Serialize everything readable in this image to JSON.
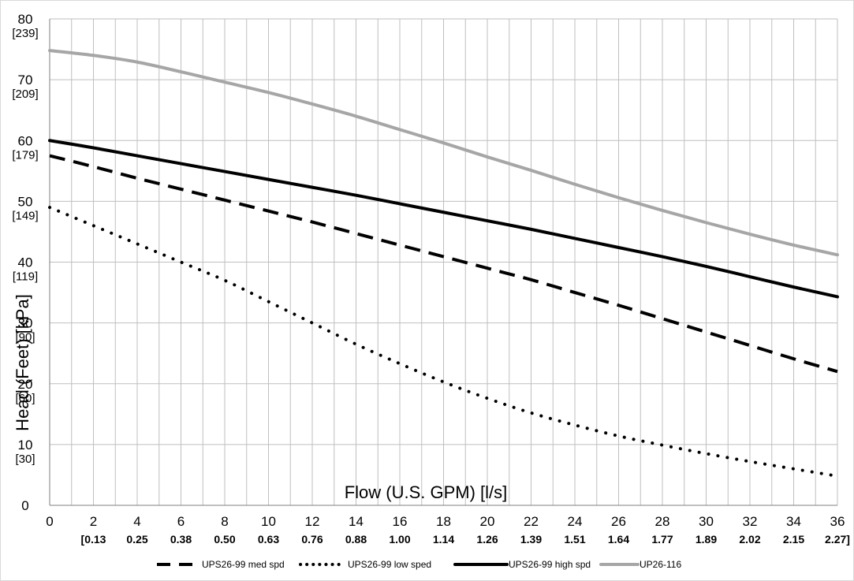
{
  "chart_data": {
    "type": "line",
    "title": "",
    "xlabel": "Flow (U.S. GPM) [l/s]",
    "ylabel": "Head (Feet) [kPa]",
    "xlim": [
      0,
      36
    ],
    "ylim": [
      0,
      80
    ],
    "grid": true,
    "legend_position": "bottom",
    "x_ticks": [
      "0",
      "2",
      "4",
      "6",
      "8",
      "10",
      "12",
      "14",
      "16",
      "18",
      "20",
      "22",
      "24",
      "26",
      "28",
      "30",
      "32",
      "34",
      "36"
    ],
    "x_ticks_secondary": [
      "[0.13",
      "0.25",
      "0.38",
      "0.50",
      "0.63",
      "0.76",
      "0.88",
      "1.00",
      "1.14",
      "1.26",
      "1.39",
      "1.51",
      "1.64",
      "1.77",
      "1.89",
      "2.02",
      "2.15",
      "2.27]"
    ],
    "y_ticks": [
      "0",
      "10",
      "20",
      "30",
      "40",
      "50",
      "60",
      "70",
      "80"
    ],
    "y_ticks_secondary": [
      "",
      "[30]",
      "[60]",
      "[90]",
      "[119]",
      "[149]",
      "[179]",
      "[209]",
      "[239]"
    ],
    "series": [
      {
        "name": "UPS26-99 med spd",
        "style": "dashed",
        "color": "#000000",
        "x": [
          0,
          2,
          4,
          6,
          8,
          10,
          12,
          14,
          16,
          18,
          20,
          22,
          24,
          26,
          28,
          30,
          32,
          34,
          36
        ],
        "y": [
          57.5,
          55.7,
          53.8,
          52.0,
          50.2,
          48.4,
          46.6,
          44.7,
          42.8,
          40.9,
          39.0,
          37.1,
          35.0,
          32.9,
          30.7,
          28.5,
          26.3,
          24.1,
          22.0
        ]
      },
      {
        "name": "UPS26-99 low sped",
        "style": "dotted",
        "color": "#000000",
        "x": [
          0,
          2,
          4,
          6,
          8,
          10,
          12,
          14,
          16,
          18,
          20,
          22,
          24,
          26,
          28,
          30,
          32,
          34,
          36
        ],
        "y": [
          49.0,
          46.0,
          43.0,
          40.0,
          37.0,
          33.5,
          30.0,
          26.5,
          23.3,
          20.3,
          17.6,
          15.2,
          13.2,
          11.4,
          9.9,
          8.5,
          7.2,
          6.0,
          4.8
        ]
      },
      {
        "name": "UPS26-99 high spd",
        "style": "solid",
        "color": "#000000",
        "x": [
          0,
          2,
          4,
          6,
          8,
          10,
          12,
          14,
          16,
          18,
          20,
          22,
          24,
          26,
          28,
          30,
          32,
          34,
          36
        ],
        "y": [
          60.0,
          58.8,
          57.5,
          56.2,
          54.9,
          53.6,
          52.3,
          51.0,
          49.6,
          48.2,
          46.8,
          45.4,
          43.9,
          42.4,
          40.9,
          39.3,
          37.6,
          35.9,
          34.3
        ]
      },
      {
        "name": "UP26-116",
        "style": "solid",
        "color": "#a6a6a6",
        "x": [
          0,
          2,
          4,
          6,
          8,
          10,
          12,
          14,
          16,
          18,
          20,
          22,
          24,
          26,
          28,
          30,
          32,
          34,
          36
        ],
        "y": [
          74.8,
          74.0,
          72.9,
          71.3,
          69.6,
          67.9,
          66.0,
          64.0,
          61.8,
          59.6,
          57.3,
          55.1,
          52.8,
          50.6,
          48.5,
          46.5,
          44.6,
          42.8,
          41.2
        ]
      }
    ]
  }
}
